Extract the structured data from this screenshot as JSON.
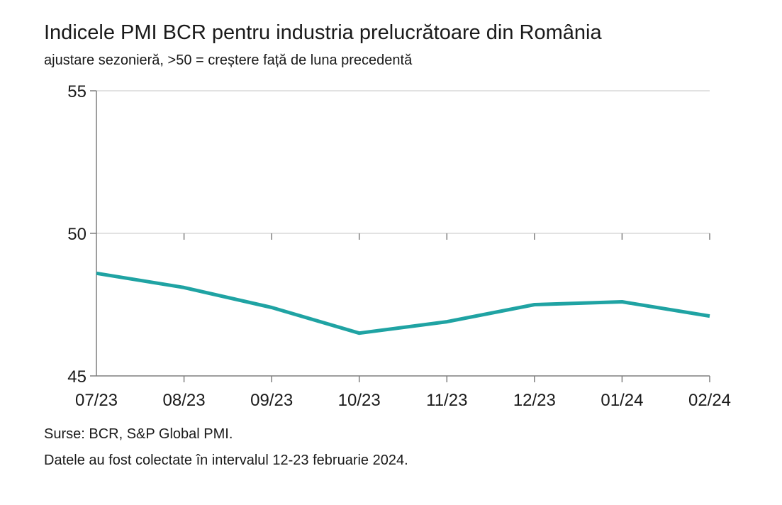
{
  "title": "Indicele PMI BCR pentru industria prelucrătoare din România",
  "subtitle": "ajustare sezonieră, >50 = creștere față de luna precedentă",
  "sources": [
    "Surse: BCR, S&P Global PMI.",
    "Datele au fost colectate în intervalul 12-23 februarie 2024."
  ],
  "colors": {
    "series": "#1fa3a3",
    "grid": "#d9d9d9",
    "axis": "#7f7f7f"
  },
  "chart_data": {
    "type": "line",
    "title": "Indicele PMI BCR pentru industria prelucrătoare din România",
    "subtitle": "ajustare sezonieră, >50 = creștere față de luna precedentă",
    "xlabel": "",
    "ylabel": "",
    "categories": [
      "07/23",
      "08/23",
      "09/23",
      "10/23",
      "11/23",
      "12/23",
      "01/24",
      "02/24"
    ],
    "series": [
      {
        "values": [
          48.6,
          48.1,
          47.4,
          46.5,
          46.9,
          47.5,
          47.6,
          47.1
        ]
      }
    ],
    "ylim": [
      45,
      55
    ],
    "yticks": [
      "45",
      "50",
      "55"
    ],
    "grid": "horizontal",
    "legend": "none"
  }
}
